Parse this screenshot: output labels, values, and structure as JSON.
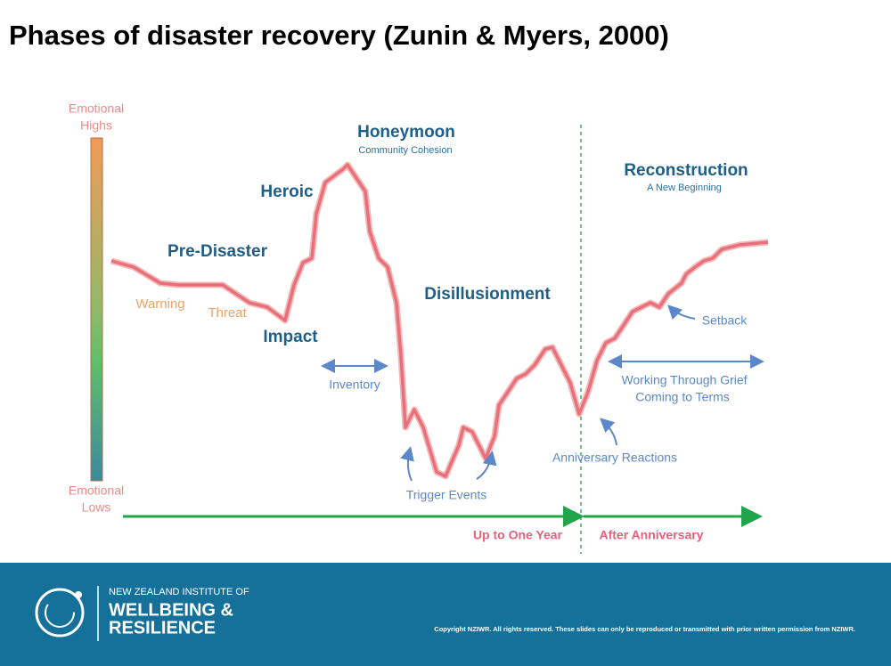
{
  "title": "Phases of disaster recovery (Zunin & Myers, 2000)",
  "axis": {
    "high": [
      "Emotional",
      "Highs"
    ],
    "low": [
      "Emotional",
      "Lows"
    ]
  },
  "phases": {
    "pre_disaster": "Pre-Disaster",
    "warning": "Warning",
    "threat": "Threat",
    "impact": "Impact",
    "heroic": "Heroic",
    "honeymoon": {
      "label": "Honeymoon",
      "sub": "Community Cohesion"
    },
    "disillusionment": "Disillusionment",
    "reconstruction": {
      "label": "Reconstruction",
      "sub": "A New Beginning"
    }
  },
  "annotations": {
    "inventory": "Inventory",
    "trigger_events": "Trigger Events",
    "anniversary_reactions": "Anniversary Reactions",
    "setback": "Setback",
    "working_through_grief": {
      "label": "Working Through Grief",
      "sub": "Coming to Terms"
    }
  },
  "timeline": {
    "first": "Up to One Year",
    "second": "After Anniversary"
  },
  "footer": {
    "org": [
      "NEW ZEALAND INSTITUTE OF",
      "WELLBEING &",
      "RESILIENCE"
    ],
    "copyright": "Copyright NZIWR. All rights reserved. These slides can only be reproduced or transmitted with prior written permission from NZIWR."
  }
}
